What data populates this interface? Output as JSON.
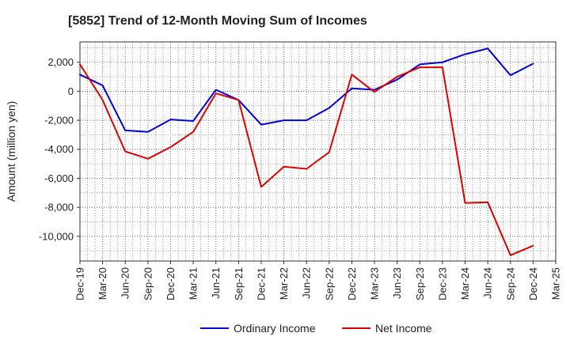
{
  "chart_data": {
    "type": "line",
    "title": "[5852]  Trend of 12-Month Moving Sum of Incomes",
    "xlabel": "",
    "ylabel": "Amount (million yen)",
    "ylim": [
      -11700,
      3400
    ],
    "y_ticks": [
      2000,
      0,
      -2000,
      -4000,
      -6000,
      -8000,
      -10000
    ],
    "y_tick_labels": [
      "2,000",
      "0",
      "-2,000",
      "-4,000",
      "-6,000",
      "-8,000",
      "-10,000"
    ],
    "x_tick_labels": [
      "Dec-19",
      "Mar-20",
      "Jun-20",
      "Sep-20",
      "Dec-20",
      "Mar-21",
      "Jun-21",
      "Sep-21",
      "Dec-21",
      "Mar-22",
      "Jun-22",
      "Sep-22",
      "Dec-22",
      "Mar-23",
      "Jun-23",
      "Sep-23",
      "Dec-23",
      "Mar-24",
      "Jun-24",
      "Sep-24",
      "Dec-24",
      "Mar-25"
    ],
    "grid": true,
    "legend_position": "bottom",
    "series": [
      {
        "name": "Ordinary Income",
        "color": "#0000dd",
        "values": [
          1150,
          400,
          -2700,
          -2800,
          -1950,
          -2050,
          100,
          -600,
          -2300,
          -2000,
          -2000,
          -1150,
          200,
          100,
          800,
          1850,
          2000,
          2550,
          2950,
          1100,
          1900
        ]
      },
      {
        "name": "Net Income",
        "color": "#dd0000",
        "values": [
          1850,
          -600,
          -4150,
          -4650,
          -3850,
          -2800,
          -150,
          -600,
          -6600,
          -5200,
          -5350,
          -4200,
          1150,
          -50,
          1000,
          1650,
          1650,
          -7700,
          -7650,
          -11300,
          -10650
        ]
      }
    ]
  }
}
